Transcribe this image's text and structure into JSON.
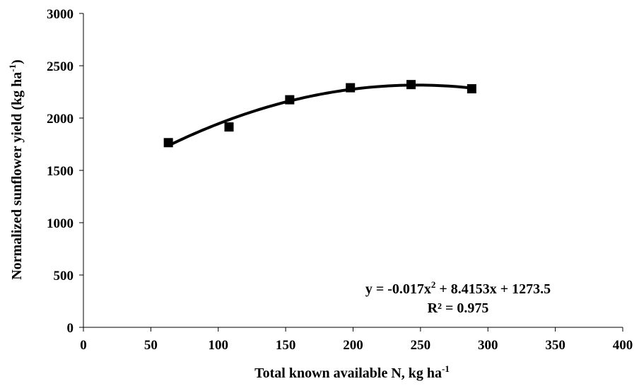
{
  "chart_data": {
    "type": "scatter",
    "title": "",
    "xlabel": {
      "main": "Total known available N, kg ha",
      "sup": "-1"
    },
    "ylabel": {
      "main": "Normalized sunflower yield (kg ha",
      "sup": "-1",
      "close": ")"
    },
    "xlim": [
      0,
      400
    ],
    "ylim": [
      0,
      3000
    ],
    "xticks": [
      0,
      50,
      100,
      150,
      200,
      250,
      300,
      350,
      400
    ],
    "yticks": [
      0,
      500,
      1000,
      1500,
      2000,
      2500,
      3000
    ],
    "grid": false,
    "legend": "none",
    "series": [
      {
        "x": [
          63,
          108,
          153,
          198,
          243,
          288
        ],
        "y": [
          1765,
          1915,
          2175,
          2290,
          2320,
          2280
        ],
        "marker": "square",
        "color": "#000000"
      }
    ],
    "trendline": {
      "type": "polynomial",
      "order": 2,
      "coefficients": {
        "a": -0.017,
        "b": 8.4153,
        "c": 1273.5
      },
      "x_range": [
        63,
        288
      ],
      "color": "#000000"
    },
    "annotations": {
      "equation": {
        "lead": "y = -0.017x",
        "sup": "2",
        "rest": " + 8.4153x + 1273.5"
      },
      "r_squared": "R² = 0.975"
    }
  }
}
